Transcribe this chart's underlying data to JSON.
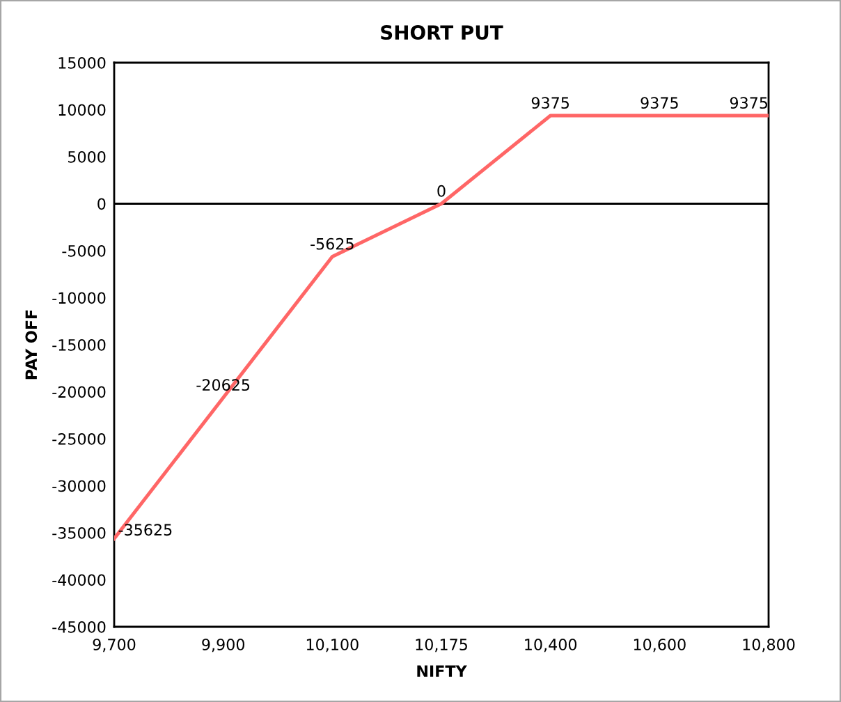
{
  "chart_data": {
    "type": "line",
    "title": "SHORT PUT",
    "xlabel": "NIFTY",
    "ylabel": "PAY OFF",
    "categories": [
      "9,700",
      "9,900",
      "10,100",
      "10,175",
      "10,400",
      "10,600",
      "10,800"
    ],
    "values": [
      -35625,
      -20625,
      -5625,
      0,
      9375,
      9375,
      9375
    ],
    "color": "#ff6666",
    "ylim": [
      -45000,
      15000
    ],
    "yticks": [
      -45000,
      -40000,
      -35000,
      -30000,
      -25000,
      -20000,
      -15000,
      -10000,
      -5000,
      0,
      5000,
      10000,
      15000
    ],
    "data_labels": true,
    "ref_lines": [
      {
        "axis": "y",
        "value": 0,
        "color": "#000000"
      }
    ],
    "grid": false,
    "marker": "none",
    "line_style": "solid"
  }
}
